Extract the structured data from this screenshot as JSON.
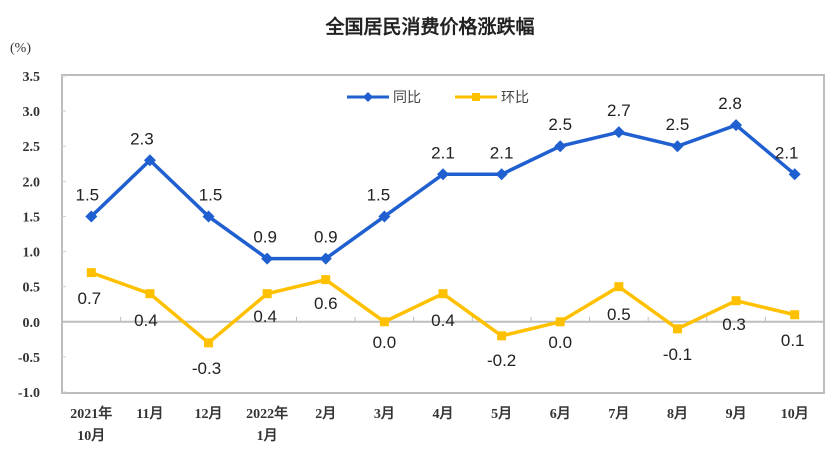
{
  "chart_data": {
    "type": "line",
    "title": "全国居民消费价格涨跌幅",
    "unit_label": "(%)",
    "xlabel": "",
    "ylabel": "(%)",
    "ylim": [
      -1.0,
      3.5
    ],
    "yticks": [
      "3.5",
      "3.0",
      "2.5",
      "2.0",
      "1.5",
      "1.0",
      "0.5",
      "0.0",
      "-0.5",
      "-1.0"
    ],
    "grid": false,
    "legend_position": "top-center",
    "categories": [
      [
        "2021年",
        "10月"
      ],
      [
        "11月"
      ],
      [
        "12月"
      ],
      [
        "2022年",
        "1月"
      ],
      [
        "2月"
      ],
      [
        "3月"
      ],
      [
        "4月"
      ],
      [
        "5月"
      ],
      [
        "6月"
      ],
      [
        "7月"
      ],
      [
        "8月"
      ],
      [
        "9月"
      ],
      [
        "10月"
      ]
    ],
    "series": [
      {
        "name": "同比",
        "color": "#1F5FD0",
        "marker": "diamond",
        "values": [
          1.5,
          2.3,
          1.5,
          0.9,
          0.9,
          1.5,
          2.1,
          2.1,
          2.5,
          2.7,
          2.5,
          2.8,
          2.1
        ],
        "labels": [
          "1.5",
          "2.3",
          "1.5",
          "0.9",
          "0.9",
          "1.5",
          "2.1",
          "2.1",
          "2.5",
          "2.7",
          "2.5",
          "2.8",
          "2.1"
        ]
      },
      {
        "name": "环比",
        "color": "#FFC000",
        "marker": "square",
        "values": [
          0.7,
          0.4,
          -0.3,
          0.4,
          0.6,
          0.0,
          0.4,
          -0.2,
          0.0,
          0.5,
          -0.1,
          0.3,
          0.1
        ],
        "labels": [
          "0.7",
          "0.4",
          "-0.3",
          "0.4",
          "0.6",
          "0.0",
          "0.4",
          "-0.2",
          "0.0",
          "0.5",
          "-0.1",
          "0.3",
          "0.1"
        ]
      }
    ]
  }
}
